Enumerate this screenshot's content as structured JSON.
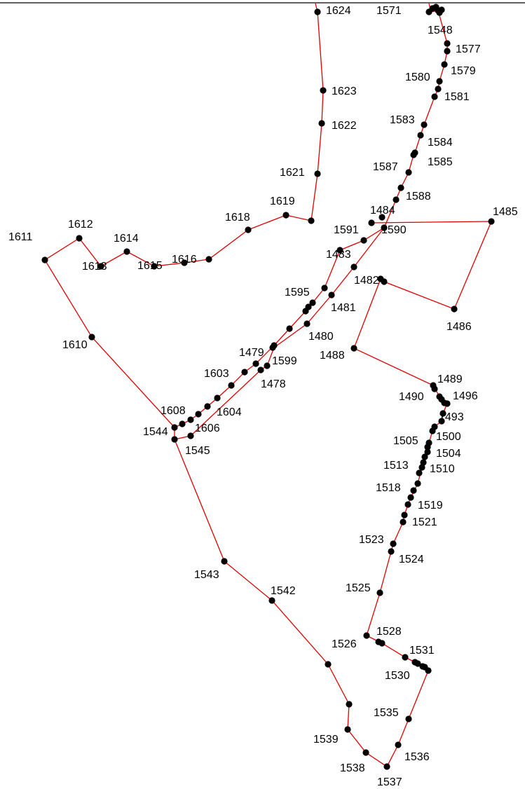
{
  "map": {
    "line_color": "#e00000",
    "point_color": "#000000",
    "labels": [
      "1624",
      "1571",
      "1548",
      "1577",
      "1579",
      "1580",
      "1581",
      "1623",
      "1622",
      "1583",
      "1584",
      "1585",
      "1587",
      "1621",
      "1588",
      "1619",
      "1618",
      "1484",
      "1485",
      "1612",
      "1591",
      "1590",
      "1614",
      "1611",
      "1483",
      "1613",
      "1615",
      "1616",
      "1482",
      "1486",
      "1595",
      "1481",
      "1480",
      "1610",
      "1479",
      "1599",
      "1488",
      "1603",
      "1478",
      "1489",
      "1490",
      "1496",
      "1608",
      "1604",
      "1544",
      "1606",
      "1493",
      "1545",
      "1500",
      "1505",
      "1504",
      "1510",
      "1513",
      "1518",
      "1519",
      "1521",
      "1523",
      "1524",
      "1543",
      "1542",
      "1525",
      "1528",
      "1526",
      "1531",
      "1530",
      "1535",
      "1539",
      "1536",
      "1538",
      "1537"
    ]
  }
}
